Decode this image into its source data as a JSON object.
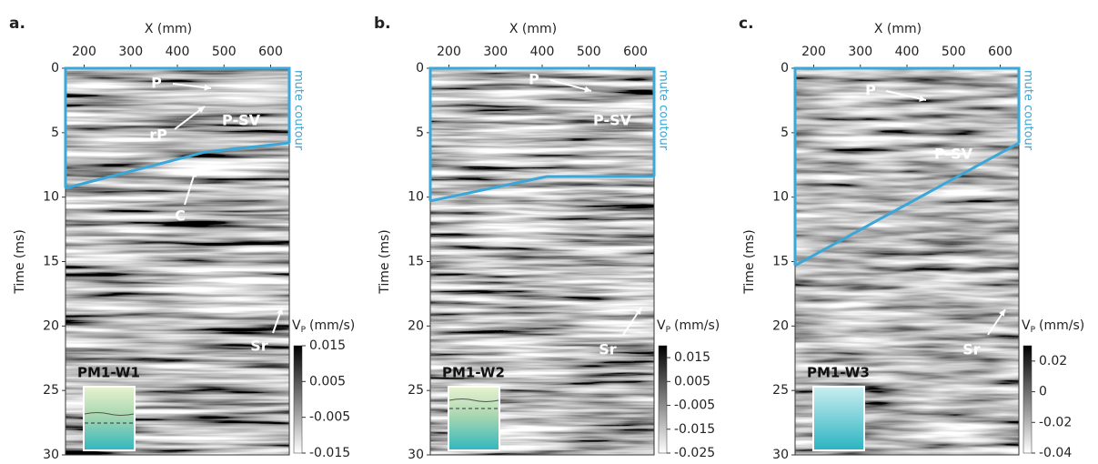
{
  "chart_data": [
    {
      "type": "seismogram",
      "panel_label": "a.",
      "x_label": "X (mm)",
      "y_label": "Time (ms)",
      "xlim": [
        160,
        640
      ],
      "xticks": [
        200,
        300,
        400,
        500,
        600
      ],
      "ylim": [
        30,
        0
      ],
      "yticks": [
        0,
        5,
        10,
        15,
        20,
        25,
        30
      ],
      "mute_x": [
        160,
        460,
        640
      ],
      "mute_y": [
        9.3,
        6.5,
        5.8
      ],
      "mute_color": "#3ba7d8",
      "mute_label": "mute coutour",
      "annotations": [
        "P",
        "rP",
        "P-SV",
        "C",
        "Sr"
      ],
      "well_label": "PM1-W1",
      "colorbar_label": "V",
      "colorbar_sub": "P",
      "colorbar_unit": "(mm/s)",
      "clim": [
        -0.015,
        0.015
      ],
      "cticks": [
        0.015,
        0.005,
        -0.005,
        -0.015
      ]
    },
    {
      "type": "seismogram",
      "panel_label": "b.",
      "x_label": "X (mm)",
      "y_label": "Time (ms)",
      "xlim": [
        160,
        640
      ],
      "xticks": [
        200,
        300,
        400,
        500,
        600
      ],
      "ylim": [
        30,
        0
      ],
      "yticks": [
        0,
        5,
        10,
        15,
        20,
        25,
        30
      ],
      "mute_x": [
        160,
        410,
        640
      ],
      "mute_y": [
        10.3,
        8.4,
        8.4
      ],
      "mute_color": "#3ba7d8",
      "mute_label": "mute coutour",
      "annotations": [
        "P",
        "P-SV",
        "Sr"
      ],
      "well_label": "PM1-W2",
      "colorbar_label": "V",
      "colorbar_sub": "P",
      "colorbar_unit": "(mm/s)",
      "clim": [
        -0.025,
        0.02
      ],
      "cticks": [
        0.015,
        0.005,
        -0.005,
        -0.015,
        -0.025
      ]
    },
    {
      "type": "seismogram",
      "panel_label": "c.",
      "x_label": "X (mm)",
      "y_label": "Time (ms)",
      "xlim": [
        160,
        640
      ],
      "xticks": [
        200,
        300,
        400,
        500,
        600
      ],
      "ylim": [
        30,
        0
      ],
      "yticks": [
        0,
        5,
        10,
        15,
        20,
        25,
        30
      ],
      "mute_x": [
        160,
        640
      ],
      "mute_y": [
        15.3,
        5.8
      ],
      "mute_color": "#3ba7d8",
      "mute_label": "mute coutour",
      "annotations": [
        "P",
        "P-SV",
        "Sr"
      ],
      "well_label": "PM1-W3",
      "colorbar_label": "V",
      "colorbar_sub": "P",
      "colorbar_unit": "(mm/s)",
      "clim": [
        -0.04,
        0.03
      ],
      "cticks": [
        0.02,
        0,
        -0.02,
        -0.04
      ]
    }
  ]
}
